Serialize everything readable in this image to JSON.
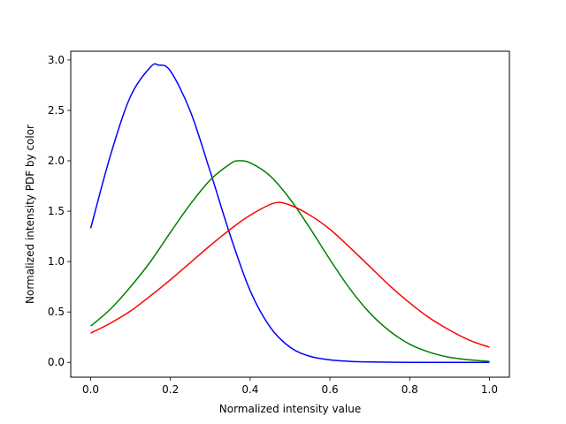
{
  "chart_data": {
    "type": "line",
    "title": "",
    "xlabel": "Normalized intensity value",
    "ylabel": "Normalized intensity PDF by color",
    "xlim": [
      -0.05,
      1.05
    ],
    "ylim": [
      -0.147,
      3.087
    ],
    "xticks": [
      0.0,
      0.2,
      0.4,
      0.6,
      0.8,
      1.0
    ],
    "xtick_labels": [
      "0.0",
      "0.2",
      "0.4",
      "0.6",
      "0.8",
      "1.0"
    ],
    "yticks": [
      0.0,
      0.5,
      1.0,
      1.5,
      2.0,
      2.5,
      3.0
    ],
    "ytick_labels": [
      "0.0",
      "0.5",
      "1.0",
      "1.5",
      "2.0",
      "2.5",
      "3.0"
    ],
    "grid": false,
    "legend": "none",
    "series": [
      {
        "color": "#0000ff",
        "x": [
          0.0,
          0.05,
          0.1,
          0.15,
          0.17,
          0.2,
          0.25,
          0.3,
          0.35,
          0.4,
          0.45,
          0.5,
          0.55,
          0.6,
          0.65,
          0.7,
          0.8,
          0.9,
          1.0
        ],
        "y": [
          1.33,
          2.06,
          2.64,
          2.93,
          2.95,
          2.89,
          2.49,
          1.89,
          1.26,
          0.71,
          0.35,
          0.15,
          0.06,
          0.025,
          0.01,
          0.004,
          0.0,
          0.0,
          0.0
        ]
      },
      {
        "color": "#008000",
        "x": [
          0.0,
          0.05,
          0.1,
          0.15,
          0.2,
          0.25,
          0.3,
          0.35,
          0.37,
          0.4,
          0.45,
          0.5,
          0.55,
          0.6,
          0.65,
          0.7,
          0.75,
          0.8,
          0.85,
          0.9,
          0.95,
          1.0
        ],
        "y": [
          0.36,
          0.53,
          0.75,
          1.0,
          1.29,
          1.57,
          1.81,
          1.97,
          2.0,
          1.98,
          1.85,
          1.62,
          1.33,
          1.02,
          0.73,
          0.49,
          0.31,
          0.18,
          0.1,
          0.05,
          0.025,
          0.01
        ]
      },
      {
        "color": "#ff0000",
        "x": [
          0.0,
          0.05,
          0.1,
          0.15,
          0.2,
          0.25,
          0.3,
          0.35,
          0.4,
          0.46,
          0.5,
          0.55,
          0.6,
          0.65,
          0.7,
          0.75,
          0.8,
          0.85,
          0.9,
          0.95,
          1.0
        ],
        "y": [
          0.29,
          0.39,
          0.51,
          0.66,
          0.82,
          0.99,
          1.16,
          1.32,
          1.46,
          1.58,
          1.56,
          1.46,
          1.32,
          1.14,
          0.95,
          0.76,
          0.59,
          0.44,
          0.32,
          0.22,
          0.15
        ]
      }
    ]
  }
}
